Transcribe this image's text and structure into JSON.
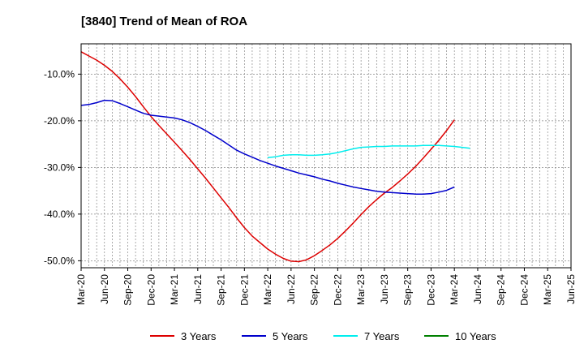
{
  "chart_data": {
    "type": "line",
    "title": "[3840]  Trend of Mean of ROA",
    "xlabel": "",
    "ylabel": "",
    "x_ticks": [
      "Mar-20",
      "Jun-20",
      "Sep-20",
      "Dec-20",
      "Mar-21",
      "Jun-21",
      "Sep-21",
      "Dec-21",
      "Mar-22",
      "Jun-22",
      "Sep-22",
      "Dec-22",
      "Mar-23",
      "Jun-23",
      "Sep-23",
      "Dec-23",
      "Mar-24",
      "Jun-24",
      "Sep-24",
      "Dec-24",
      "Mar-25",
      "Jun-25"
    ],
    "y_ticks": [
      -10,
      -20,
      -30,
      -40,
      -50
    ],
    "y_tick_labels": [
      "-10.0%",
      "-20.0%",
      "-30.0%",
      "-40.0%",
      "-50.0%"
    ],
    "ylim": [
      -51.5,
      -3.5
    ],
    "grid": true,
    "legend_position": "bottom",
    "series": [
      {
        "name": "3 Years",
        "color": "#dd0000",
        "values": [
          -5.2,
          -6.1,
          -7.0,
          -8.1,
          -9.4,
          -11.0,
          -12.8,
          -14.8,
          -17.0,
          -19.1,
          -21.0,
          -22.8,
          -24.6,
          -26.4,
          -28.3,
          -30.3,
          -32.3,
          -34.4,
          -36.5,
          -38.6,
          -40.8,
          -42.9,
          -44.7,
          -46.1,
          -47.5,
          -48.6,
          -49.5,
          -50.1,
          -50.2,
          -49.8,
          -48.9,
          -47.8,
          -46.6,
          -45.2,
          -43.6,
          -41.9,
          -40.1,
          -38.4,
          -36.9,
          -35.5,
          -34.3,
          -32.9,
          -31.4,
          -29.8,
          -28.0,
          -26.1,
          -24.2,
          -22.1,
          -19.8
        ]
      },
      {
        "name": "5 Years",
        "color": "#0000cc",
        "values": [
          -16.7,
          -16.5,
          -16.1,
          -15.6,
          -15.7,
          -16.3,
          -17.0,
          -17.7,
          -18.4,
          -18.8,
          -19.0,
          -19.2,
          -19.4,
          -19.8,
          -20.4,
          -21.2,
          -22.1,
          -23.1,
          -24.1,
          -25.2,
          -26.3,
          -27.1,
          -27.8,
          -28.5,
          -29.1,
          -29.7,
          -30.2,
          -30.7,
          -31.2,
          -31.6,
          -32.0,
          -32.5,
          -32.9,
          -33.4,
          -33.8,
          -34.2,
          -34.5,
          -34.8,
          -35.1,
          -35.3,
          -35.4,
          -35.5,
          -35.6,
          -35.7,
          -35.7,
          -35.6,
          -35.3,
          -34.9,
          -34.2
        ]
      },
      {
        "name": "7 Years",
        "color": "#00eeee",
        "values": [
          null,
          null,
          null,
          null,
          null,
          null,
          null,
          null,
          null,
          null,
          null,
          null,
          null,
          null,
          null,
          null,
          null,
          null,
          null,
          null,
          null,
          null,
          null,
          null,
          -27.9,
          -27.7,
          -27.4,
          -27.3,
          -27.3,
          -27.4,
          -27.4,
          -27.3,
          -27.1,
          -26.8,
          -26.4,
          -26.0,
          -25.7,
          -25.6,
          -25.5,
          -25.5,
          -25.4,
          -25.4,
          -25.4,
          -25.4,
          -25.3,
          -25.3,
          -25.3,
          -25.4,
          -25.5,
          -25.7,
          -25.9
        ]
      },
      {
        "name": "10 Years",
        "color": "#008000",
        "values": []
      }
    ]
  }
}
